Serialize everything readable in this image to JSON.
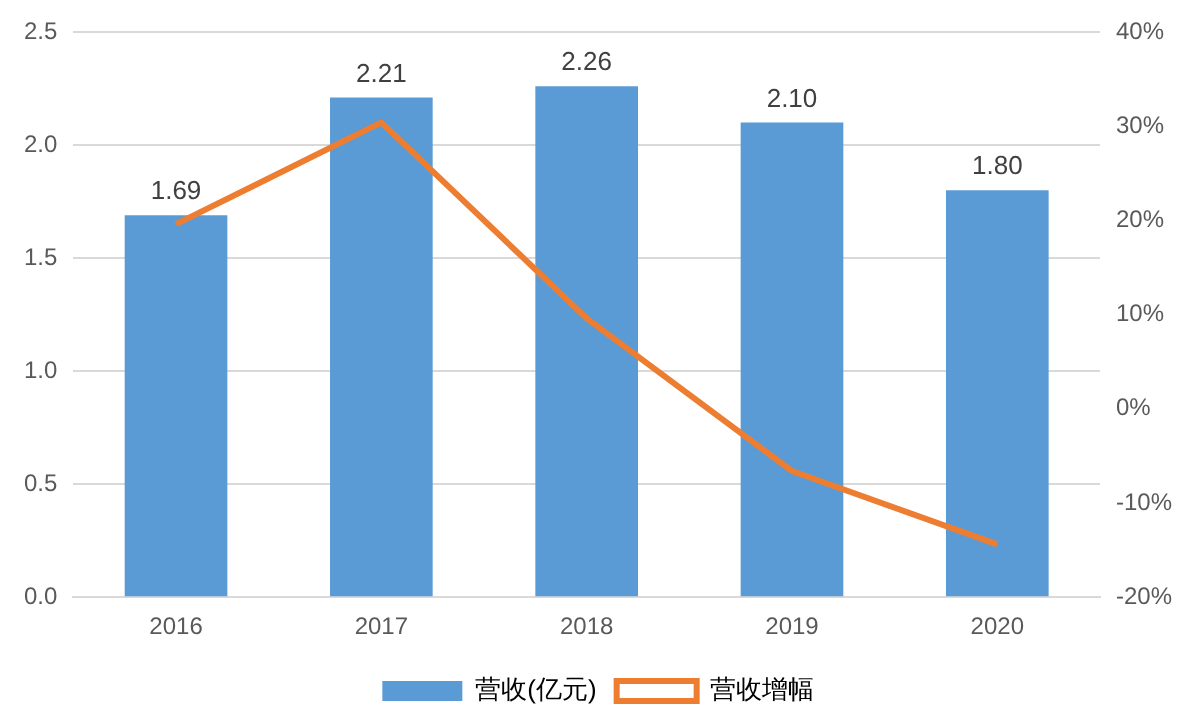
{
  "chart_data": {
    "type": "bar",
    "categories": [
      "2016",
      "2017",
      "2018",
      "2019",
      "2020"
    ],
    "series": [
      {
        "name": "营收(亿元)",
        "color": "#5b9bd5",
        "values": [
          1.69,
          2.21,
          2.26,
          2.1,
          1.8
        ],
        "value_labels": [
          "1.69",
          "2.21",
          "2.26",
          "2.10",
          "1.80"
        ]
      },
      {
        "name": "营收增幅",
        "type": "line",
        "axis": "y2",
        "color": "#ed7d31",
        "values": [
          19.6,
          30.4,
          9.6,
          -6.6,
          -14.4
        ]
      }
    ],
    "ylim": [
      0,
      2.5
    ],
    "yticks": [
      {
        "value": 0,
        "label": "0.0"
      },
      {
        "value": 0.5,
        "label": "0.5"
      },
      {
        "value": 1,
        "label": "1.0"
      },
      {
        "value": 1.5,
        "label": "1.5"
      },
      {
        "value": 2,
        "label": "2.0"
      },
      {
        "value": 2.5,
        "label": "2.5"
      }
    ],
    "y2lim": [
      -20,
      40
    ],
    "y2ticks": [
      {
        "value": -20,
        "label": "-20%"
      },
      {
        "value": -10,
        "label": "-10%"
      },
      {
        "value": 0,
        "label": "0%"
      },
      {
        "value": 10,
        "label": "10%"
      },
      {
        "value": 20,
        "label": "20%"
      },
      {
        "value": 30,
        "label": "30%"
      },
      {
        "value": 40,
        "label": "40%"
      }
    ],
    "grid": "y",
    "legend": "bottom",
    "marker": "none",
    "line_style": "solid"
  }
}
